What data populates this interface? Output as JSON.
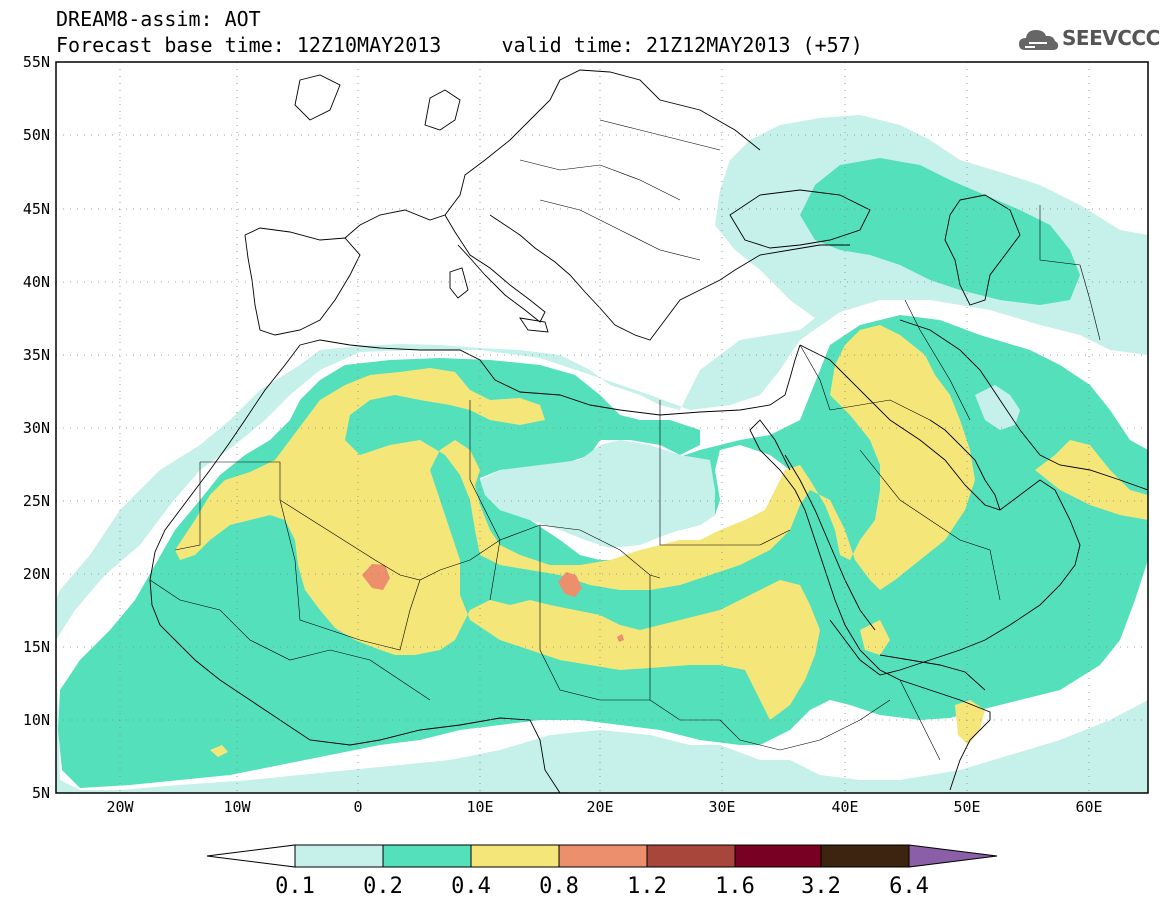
{
  "header": {
    "line1": "DREAM8-assim: AOT",
    "line2": "Forecast base time: 12Z10MAY2013     valid time: 21Z12MAY2013 (+57)"
  },
  "logo": {
    "text": "SEEVCCC",
    "icon": "cloud-icon",
    "color": "#666666"
  },
  "map": {
    "variable": "AOT",
    "lon_range": [
      -25,
      65
    ],
    "lat_range": [
      5,
      55
    ],
    "lat_ticks": [
      "5N",
      "10N",
      "15N",
      "20N",
      "25N",
      "30N",
      "35N",
      "40N",
      "45N",
      "50N",
      "55N"
    ],
    "lon_ticks": [
      "20W",
      "10W",
      "0",
      "10E",
      "20E",
      "30E",
      "40E",
      "50E",
      "60E"
    ],
    "grid": true
  },
  "colorbar": {
    "boundaries": [
      "0.1",
      "0.2",
      "0.4",
      "0.8",
      "1.2",
      "1.6",
      "3.2",
      "6.4"
    ],
    "colors": [
      "#ffffff",
      "#c6f0ea",
      "#55e0bc",
      "#f5e67a",
      "#ec8f6d",
      "#a8463c",
      "#780022",
      "#3d2410",
      "#8a5fa8"
    ]
  }
}
